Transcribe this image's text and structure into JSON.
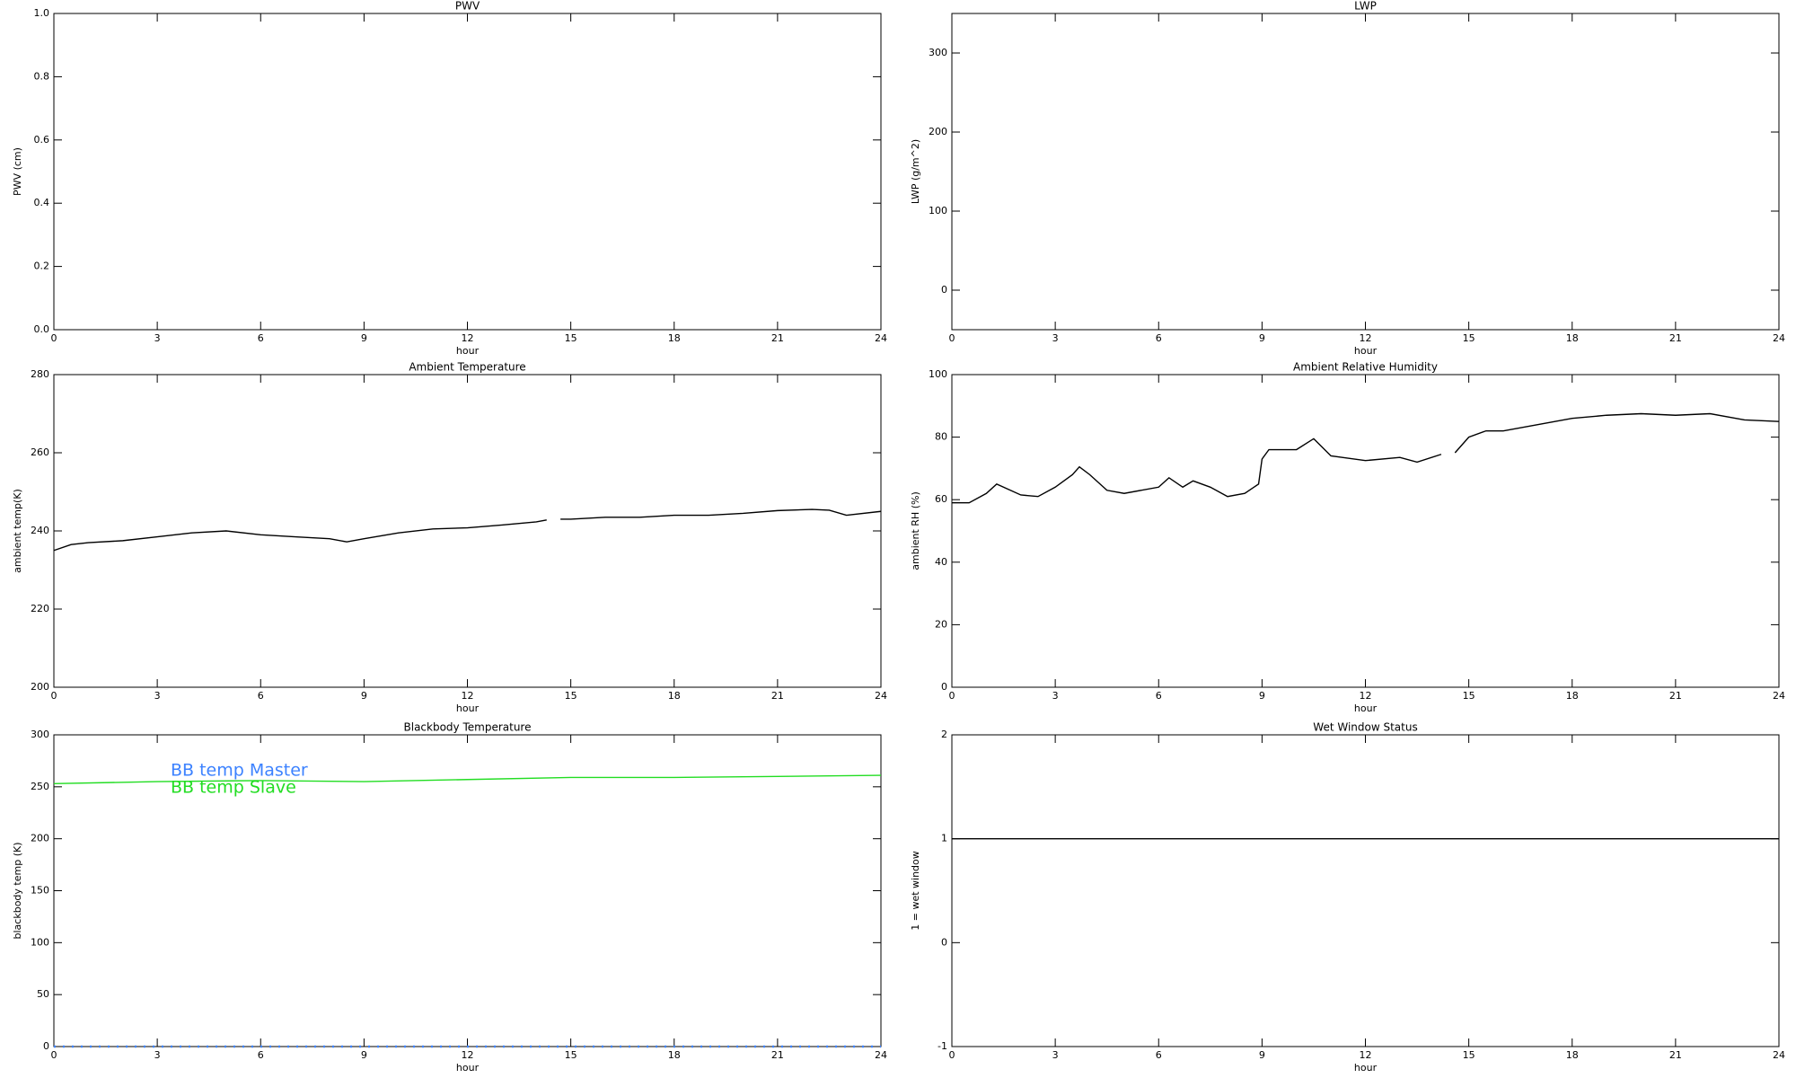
{
  "chart_data": [
    {
      "type": "line",
      "title": "PWV",
      "xlabel": "hour",
      "ylabel": "PWV (cm)",
      "xlim": [
        0,
        24
      ],
      "xticks": [
        0,
        3,
        6,
        9,
        12,
        15,
        18,
        21,
        24
      ],
      "ylim": [
        0,
        1
      ],
      "yticks": [
        {
          "value": 0,
          "label": "0.0"
        },
        0.2,
        0.4,
        0.6,
        0.8,
        {
          "value": 1,
          "label": "1.0"
        }
      ],
      "series": []
    },
    {
      "type": "line",
      "title": "LWP",
      "xlabel": "hour",
      "ylabel": "LWP (g/m^2)",
      "xlim": [
        0,
        24
      ],
      "xticks": [
        0,
        3,
        6,
        9,
        12,
        15,
        18,
        21,
        24
      ],
      "ylim": [
        -50,
        350
      ],
      "yticks": [
        0,
        100,
        200,
        300
      ],
      "series": []
    },
    {
      "type": "line",
      "title": "Ambient Temperature",
      "xlabel": "hour",
      "ylabel": "ambient temp(K)",
      "xlim": [
        0,
        24
      ],
      "xticks": [
        0,
        3,
        6,
        9,
        12,
        15,
        18,
        21,
        24
      ],
      "ylim": [
        200,
        280
      ],
      "yticks": [
        200,
        220,
        240,
        260,
        280
      ],
      "x": [
        0,
        0.5,
        1,
        2,
        3,
        4,
        5,
        6,
        7,
        8,
        8.5,
        9,
        10,
        11,
        12,
        13,
        14,
        14.3,
        14.5,
        14.7,
        15,
        16,
        17,
        18,
        19,
        20,
        21,
        22,
        22.5,
        23,
        24
      ],
      "series": [
        {
          "color": "#000000",
          "values": [
            235,
            236.5,
            237,
            237.5,
            238.5,
            239.5,
            240,
            239,
            238.5,
            238,
            237.2,
            238,
            239.5,
            240.5,
            240.8,
            241.5,
            242.3,
            242.8,
            null,
            243,
            243,
            243.5,
            243.5,
            244,
            244,
            244.5,
            245.2,
            245.5,
            245.3,
            244,
            245
          ]
        }
      ]
    },
    {
      "type": "line",
      "title": "Ambient Relative Humidity",
      "xlabel": "hour",
      "ylabel": "ambient RH (%)",
      "xlim": [
        0,
        24
      ],
      "xticks": [
        0,
        3,
        6,
        9,
        12,
        15,
        18,
        21,
        24
      ],
      "ylim": [
        0,
        100
      ],
      "yticks": [
        0,
        20,
        40,
        60,
        80,
        100
      ],
      "x": [
        0,
        0.5,
        1,
        1.3,
        2,
        2.5,
        3,
        3.5,
        3.7,
        4,
        4.5,
        5,
        6,
        6.3,
        6.7,
        7,
        7.5,
        8,
        8.5,
        8.9,
        9,
        9.2,
        10,
        10.5,
        11,
        12,
        13,
        13.5,
        14.2,
        14.4,
        14.6,
        15,
        15.5,
        16,
        17,
        18,
        19,
        20,
        21,
        22,
        23,
        24
      ],
      "series": [
        {
          "color": "#000000",
          "values": [
            59,
            59,
            62,
            65,
            61.5,
            61,
            64,
            68,
            70.5,
            68,
            63,
            62,
            64,
            67,
            64,
            66,
            64,
            61,
            62,
            65,
            73,
            76,
            76,
            79.5,
            74,
            72.5,
            73.5,
            72,
            74.5,
            null,
            75,
            80,
            82,
            82,
            84,
            86,
            87,
            87.5,
            87,
            87.5,
            85.5,
            85
          ]
        }
      ]
    },
    {
      "type": "line",
      "title": "Blackbody Temperature",
      "xlabel": "hour",
      "ylabel": "blackbody temp (K)",
      "xlim": [
        0,
        24
      ],
      "xticks": [
        0,
        3,
        6,
        9,
        12,
        15,
        18,
        21,
        24
      ],
      "ylim": [
        0,
        300
      ],
      "yticks": [
        0,
        50,
        100,
        150,
        200,
        250,
        300
      ],
      "legend": "upper left",
      "x": [
        0,
        3,
        6,
        9,
        12,
        15,
        18,
        21,
        24
      ],
      "series": [
        {
          "name": "BB temp Master",
          "color": "#3c82ff",
          "dashed": true,
          "values": [
            0,
            0,
            0,
            0,
            0,
            0,
            0,
            0,
            0
          ]
        },
        {
          "name": "BB temp Slave",
          "color": "#22dd22",
          "values": [
            253,
            255,
            256,
            255,
            257,
            259,
            259,
            260,
            261
          ]
        }
      ]
    },
    {
      "type": "line",
      "title": "Wet Window Status",
      "xlabel": "hour",
      "ylabel": "1 = wet window",
      "xlim": [
        0,
        24
      ],
      "xticks": [
        0,
        3,
        6,
        9,
        12,
        15,
        18,
        21,
        24
      ],
      "ylim": [
        -1,
        2
      ],
      "yticks": [
        -1,
        0,
        1,
        2
      ],
      "x": [
        0,
        24
      ],
      "series": [
        {
          "color": "#000000",
          "values": [
            1,
            1
          ]
        }
      ]
    }
  ]
}
